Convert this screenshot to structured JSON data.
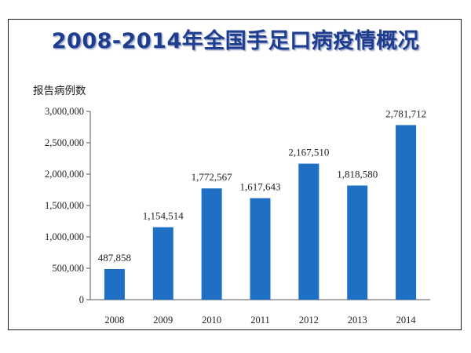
{
  "chart_data": {
    "type": "bar",
    "title": "2008-2014年全国手足口病疫情概况",
    "ylabel": "报告病例数",
    "xlabel": "",
    "categories": [
      "2008",
      "2009",
      "2010",
      "2011",
      "2012",
      "2013",
      "2014"
    ],
    "values": [
      487858,
      1154514,
      1772567,
      1617643,
      2167510,
      1818580,
      2781712
    ],
    "value_labels": [
      "487,858",
      "1,154,514",
      "1,772,567",
      "1,617,643",
      "2,167,510",
      "1,818,580",
      "2,781,712"
    ],
    "yticks": [
      0,
      500000,
      1000000,
      1500000,
      2000000,
      2500000,
      3000000
    ],
    "ytick_labels": [
      "0",
      "500,000",
      "1,000,000",
      "1,500,000",
      "2,000,000",
      "2,500,000",
      "3,000,000"
    ],
    "ylim": [
      0,
      3000000
    ],
    "grid": false,
    "legend": "none",
    "bar_color": "#1f6fc5"
  }
}
